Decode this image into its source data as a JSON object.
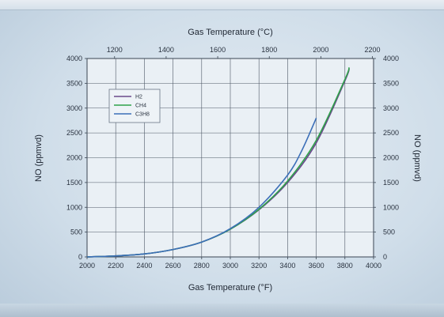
{
  "chart_data": {
    "type": "line",
    "xlabel": "Gas Temperature (°F)",
    "x2label": "Gas Temperature (°C)",
    "ylabel": "NO (ppmvd)",
    "y2label": "NO (ppmvd)",
    "xlim": [
      2000,
      4000
    ],
    "ylim": [
      0,
      4000
    ],
    "x_ticks": [
      2000,
      2200,
      2400,
      2600,
      2800,
      3000,
      3200,
      3400,
      3600,
      3800,
      4000
    ],
    "x2_ticks": [
      1200,
      1400,
      1600,
      1800,
      2000,
      2200
    ],
    "y_ticks": [
      0,
      500,
      1000,
      1500,
      2000,
      2500,
      3000,
      3500,
      4000
    ],
    "grid": true,
    "legend_position": "upper-left",
    "series": [
      {
        "name": "H2",
        "color": "#6a4a8c",
        "x": [
          2000,
          2200,
          2400,
          2600,
          2800,
          3000,
          3200,
          3400,
          3600,
          3800,
          3830
        ],
        "y": [
          0,
          20,
          60,
          150,
          300,
          560,
          950,
          1500,
          2300,
          3550,
          3800
        ]
      },
      {
        "name": "CH4",
        "color": "#2fa24a",
        "x": [
          2000,
          2200,
          2400,
          2600,
          2800,
          3000,
          3200,
          3400,
          3600,
          3800,
          3830
        ],
        "y": [
          0,
          20,
          60,
          150,
          300,
          560,
          960,
          1530,
          2350,
          3580,
          3820
        ]
      },
      {
        "name": "C3H8",
        "color": "#3c6fb8",
        "x": [
          2000,
          2200,
          2400,
          2600,
          2800,
          3000,
          3200,
          3400,
          3500,
          3600
        ],
        "y": [
          0,
          20,
          60,
          150,
          300,
          570,
          1000,
          1650,
          2150,
          2800
        ]
      }
    ]
  }
}
